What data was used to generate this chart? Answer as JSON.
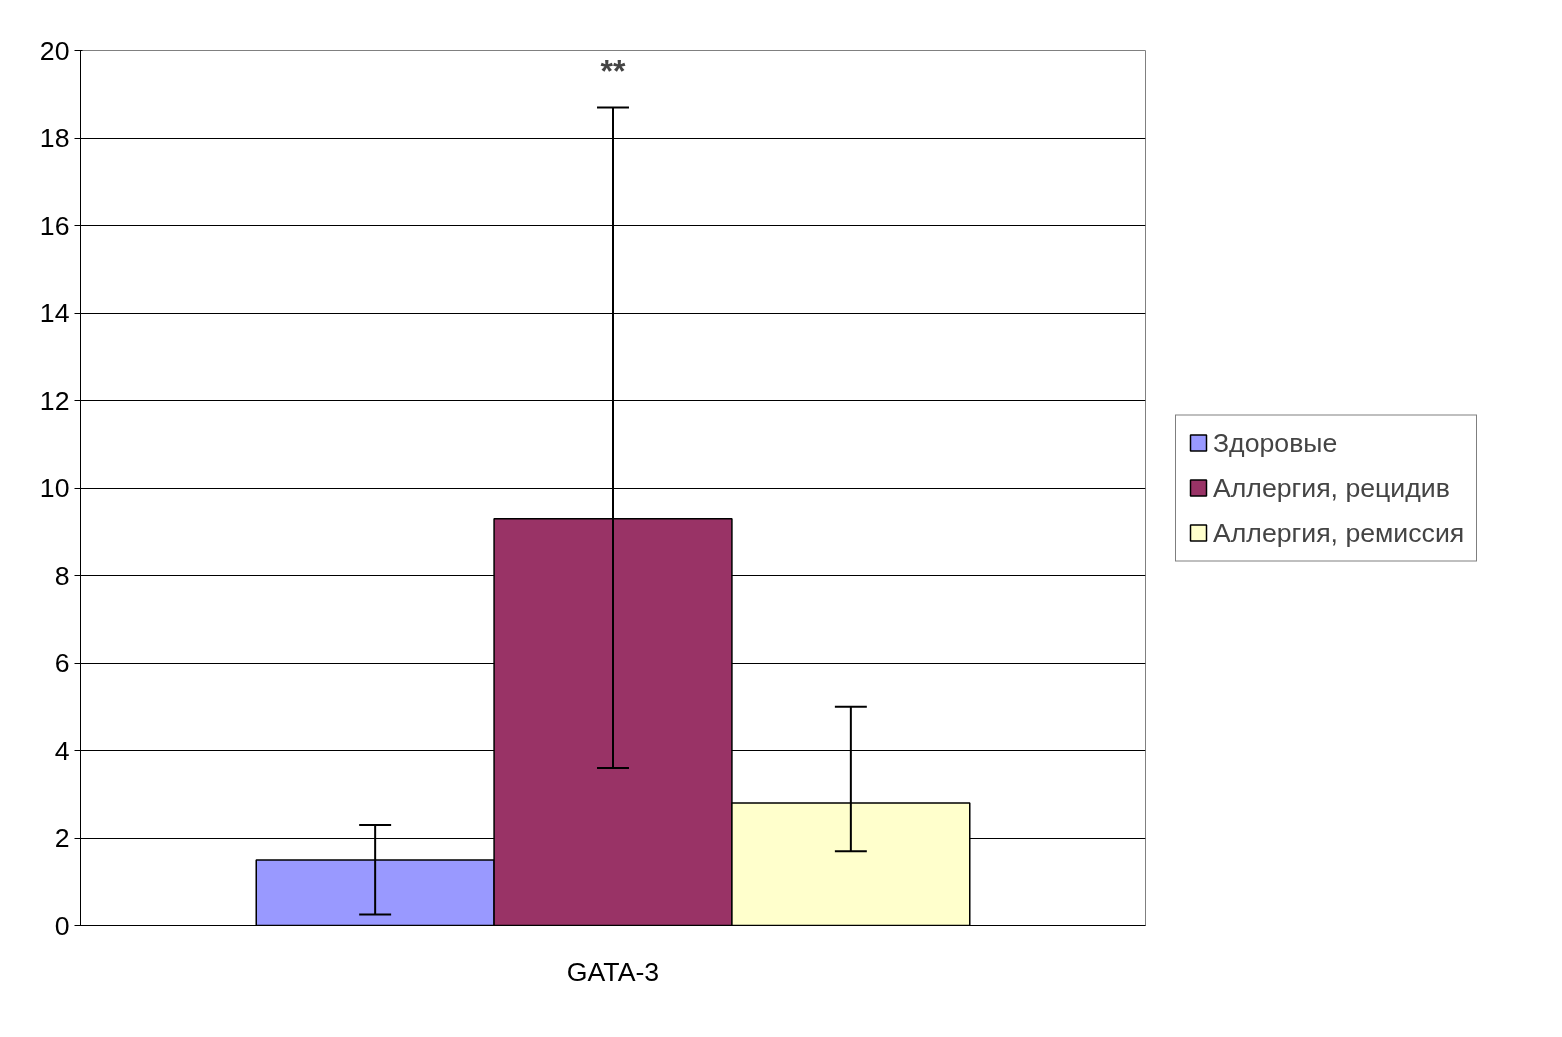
{
  "chart_data": {
    "type": "bar",
    "categories": [
      "GATA-3"
    ],
    "series": [
      {
        "name": "Здоровые",
        "color": "#9999ff",
        "values": [
          1.5
        ],
        "errors": [
          [
            0.25,
            2.3
          ]
        ]
      },
      {
        "name": "Аллергия, рецидив",
        "color": "#993366",
        "values": [
          9.3
        ],
        "errors": [
          [
            3.6,
            18.7
          ]
        ]
      },
      {
        "name": "Аллергия, ремиссия",
        "color": "#ffffcc",
        "values": [
          2.8
        ],
        "errors": [
          [
            1.7,
            5.0
          ]
        ]
      }
    ],
    "ylim": [
      0,
      20
    ],
    "yticks": [
      0,
      2,
      4,
      6,
      8,
      10,
      12,
      14,
      16,
      18,
      20
    ],
    "grid": "y",
    "legend": "right",
    "annotations": [
      "**"
    ]
  }
}
